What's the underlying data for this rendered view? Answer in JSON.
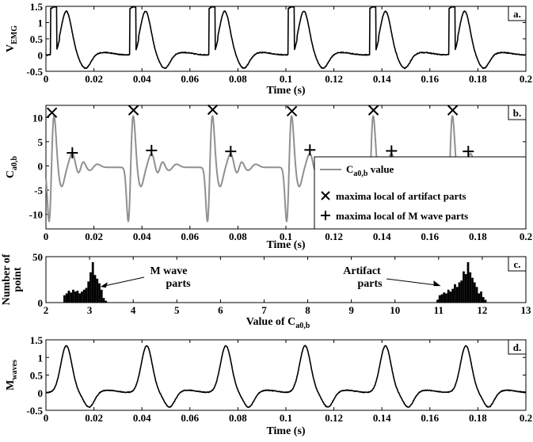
{
  "chart_data": [
    {
      "panel": "a.",
      "type": "line",
      "xlabel": "Time (s)",
      "ylabel": "V",
      "ylabel_sub": "EMG",
      "xlim": [
        0,
        0.2
      ],
      "ylim": [
        -0.5,
        1.5
      ],
      "xticks": [
        "0",
        "0.02",
        "0.04",
        "0.06",
        "0.08",
        "0.1",
        "0.12",
        "0.14",
        "0.16",
        "0.18",
        "0.2"
      ],
      "yticks": [
        "-0.5",
        "0",
        "0.5",
        "1",
        "1.5"
      ],
      "line_color": "#000000",
      "stim_times": [
        0.002,
        0.035,
        0.068,
        0.101,
        0.135,
        0.168
      ],
      "signal": {
        "artifact_amplitude": 1.42,
        "artifact_width": 0.0025,
        "peak_offset": 0.0065,
        "peak_amplitude": 1.35,
        "trough_offset": 0.0145,
        "trough_amplitude": -0.42,
        "baseline": 0.0,
        "noise": 0.012
      }
    },
    {
      "panel": "b.",
      "type": "line",
      "xlabel": "Time (s)",
      "ylabel": "C",
      "ylabel_sub": "a0,b",
      "xlim": [
        0,
        0.2
      ],
      "ylim": [
        -13,
        12.5
      ],
      "xticks": [
        "0",
        "0.02",
        "0.04",
        "0.06",
        "0.08",
        "0.1",
        "0.12",
        "0.14",
        "0.16",
        "0.18",
        "0.2"
      ],
      "yticks": [
        "-10",
        "-5",
        "0",
        "5",
        "10"
      ],
      "line_color": "#909090",
      "artifact_maxima": [
        {
          "x": 0.0025,
          "y": 11.0
        },
        {
          "x": 0.0365,
          "y": 11.5
        },
        {
          "x": 0.0695,
          "y": 11.6
        },
        {
          "x": 0.1025,
          "y": 11.3
        },
        {
          "x": 0.1365,
          "y": 11.5
        },
        {
          "x": 0.1695,
          "y": 11.5
        }
      ],
      "mwave_maxima": [
        {
          "x": 0.011,
          "y": 2.7
        },
        {
          "x": 0.044,
          "y": 3.2
        },
        {
          "x": 0.077,
          "y": 3.0
        },
        {
          "x": 0.11,
          "y": 3.3
        },
        {
          "x": 0.144,
          "y": 3.1
        },
        {
          "x": 0.176,
          "y": 3.0
        }
      ],
      "legend": [
        {
          "label": "C",
          "label_sub": "a0,b",
          "label_suffix": " value",
          "symbol": "line"
        },
        {
          "label": "maxima local of artifact parts",
          "symbol": "×"
        },
        {
          "label": "maxima local of M wave parts",
          "symbol": "+"
        }
      ]
    },
    {
      "panel": "c.",
      "type": "bar",
      "xlabel": "Value of C",
      "xlabel_sub": "a0,b",
      "ylabel": [
        "Number of",
        "point"
      ],
      "xlim": [
        2,
        13
      ],
      "ylim": [
        0,
        50
      ],
      "xticks": [
        "2",
        "3",
        "4",
        "5",
        "6",
        "7",
        "8",
        "9",
        "10",
        "11",
        "12",
        "13"
      ],
      "yticks": [
        "0",
        "50"
      ],
      "bin_width": 0.05,
      "bins": [
        {
          "x": 2.4,
          "count": 8
        },
        {
          "x": 2.45,
          "count": 10
        },
        {
          "x": 2.5,
          "count": 13
        },
        {
          "x": 2.55,
          "count": 11
        },
        {
          "x": 2.6,
          "count": 14
        },
        {
          "x": 2.65,
          "count": 12
        },
        {
          "x": 2.7,
          "count": 13
        },
        {
          "x": 2.75,
          "count": 10
        },
        {
          "x": 2.8,
          "count": 12
        },
        {
          "x": 2.85,
          "count": 14
        },
        {
          "x": 2.9,
          "count": 16
        },
        {
          "x": 2.95,
          "count": 23
        },
        {
          "x": 3.0,
          "count": 33
        },
        {
          "x": 3.05,
          "count": 44
        },
        {
          "x": 3.1,
          "count": 30
        },
        {
          "x": 3.15,
          "count": 26
        },
        {
          "x": 3.2,
          "count": 21
        },
        {
          "x": 3.25,
          "count": 14
        },
        {
          "x": 3.3,
          "count": 5
        },
        {
          "x": 3.35,
          "count": 2
        },
        {
          "x": 10.95,
          "count": 3
        },
        {
          "x": 11.0,
          "count": 8
        },
        {
          "x": 11.05,
          "count": 9
        },
        {
          "x": 11.1,
          "count": 11
        },
        {
          "x": 11.15,
          "count": 10
        },
        {
          "x": 11.2,
          "count": 14
        },
        {
          "x": 11.25,
          "count": 12
        },
        {
          "x": 11.3,
          "count": 15
        },
        {
          "x": 11.35,
          "count": 20
        },
        {
          "x": 11.4,
          "count": 17
        },
        {
          "x": 11.45,
          "count": 22
        },
        {
          "x": 11.5,
          "count": 24
        },
        {
          "x": 11.55,
          "count": 34
        },
        {
          "x": 11.6,
          "count": 31
        },
        {
          "x": 11.65,
          "count": 44
        },
        {
          "x": 11.7,
          "count": 33
        },
        {
          "x": 11.75,
          "count": 27
        },
        {
          "x": 11.8,
          "count": 22
        },
        {
          "x": 11.85,
          "count": 17
        },
        {
          "x": 11.9,
          "count": 10
        },
        {
          "x": 11.95,
          "count": 12
        },
        {
          "x": 12.0,
          "count": 6
        },
        {
          "x": 12.05,
          "count": 3
        }
      ],
      "annotations": [
        {
          "lines": [
            "M wave",
            "parts"
          ],
          "arrow_to": {
            "x": 3.25,
            "y": 18
          }
        },
        {
          "lines": [
            "Artifact",
            "parts"
          ],
          "arrow_to": {
            "x": 11.05,
            "y": 18
          }
        }
      ]
    },
    {
      "panel": "d.",
      "type": "line",
      "xlabel": "Time (s)",
      "ylabel": "M",
      "ylabel_sub": "waves",
      "xlim": [
        0,
        0.2
      ],
      "ylim": [
        -0.5,
        1.5
      ],
      "xticks": [
        "0",
        "0.02",
        "0.04",
        "0.06",
        "0.08",
        "0.1",
        "0.12",
        "0.14",
        "0.16",
        "0.18",
        "0.2"
      ],
      "yticks": [
        "-0.5",
        "0",
        "0.5",
        "1",
        "1.5"
      ],
      "line_color": "#000000",
      "peak_times": [
        0.0085,
        0.042,
        0.075,
        0.108,
        0.1415,
        0.175
      ],
      "signal": {
        "peak_amplitude": 1.33,
        "trough_offset": 0.0095,
        "trough_amplitude": -0.42,
        "noise": 0.01
      }
    }
  ]
}
